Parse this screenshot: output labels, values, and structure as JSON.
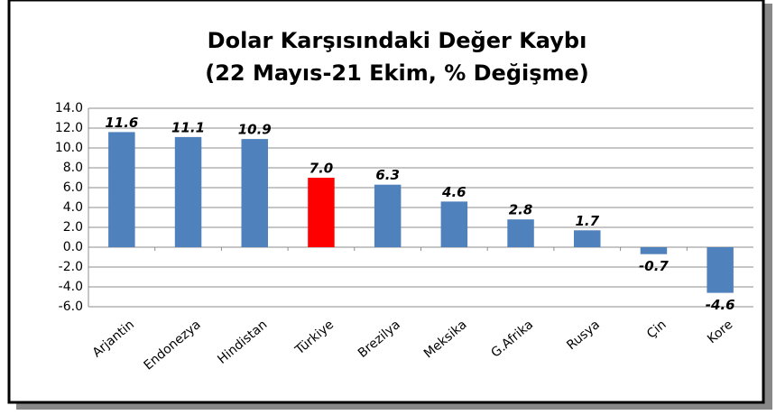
{
  "chart_data": {
    "type": "bar",
    "title": "Dolar Karşısındaki Değer Kaybı",
    "subtitle": "(22 Mayıs-21 Ekim, % Değişme)",
    "categories": [
      "Arjantin",
      "Endonezya",
      "Hindistan",
      "Türkiye",
      "Brezilya",
      "Meksika",
      "G.Afrika",
      "Rusya",
      "Çin",
      "Kore"
    ],
    "values": [
      11.6,
      11.1,
      10.9,
      7.0,
      6.3,
      4.6,
      2.8,
      1.7,
      -0.7,
      -4.6
    ],
    "value_labels": [
      "11.6",
      "11.1",
      "10.9",
      "7.0",
      "6.3",
      "4.6",
      "2.8",
      "1.7",
      "-0.7",
      "-4.6"
    ],
    "colors": [
      "#4f81bd",
      "#4f81bd",
      "#4f81bd",
      "#ff0000",
      "#4f81bd",
      "#4f81bd",
      "#4f81bd",
      "#4f81bd",
      "#4f81bd",
      "#4f81bd"
    ],
    "ylim": [
      -6,
      14
    ],
    "yticks": [
      {
        "value": -6,
        "label": "-6.0"
      },
      {
        "value": -4,
        "label": "-4.0"
      },
      {
        "value": -2,
        "label": "-2.0"
      },
      {
        "value": 0,
        "label": "0.0"
      },
      {
        "value": 2,
        "label": "2.0"
      },
      {
        "value": 4,
        "label": "4.0"
      },
      {
        "value": 6,
        "label": "6.0"
      },
      {
        "value": 8,
        "label": "8.0"
      },
      {
        "value": 10,
        "label": "10.0"
      },
      {
        "value": 12,
        "label": "12.0"
      },
      {
        "value": 14,
        "label": "14.0"
      }
    ],
    "grid": true
  }
}
